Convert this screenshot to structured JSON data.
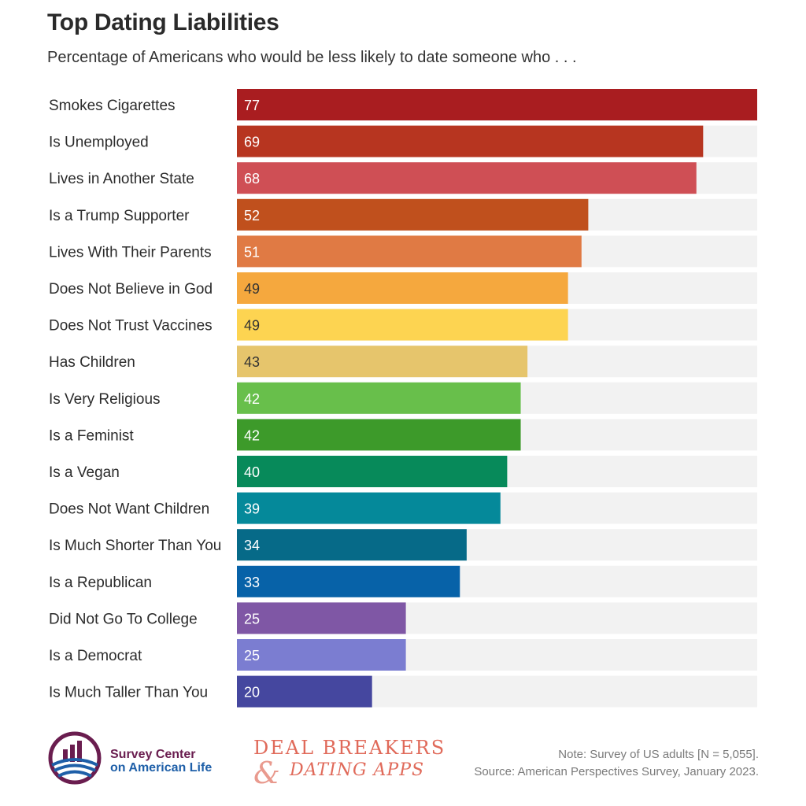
{
  "header": {
    "title": "Top Dating Liabilities",
    "subtitle": "Percentage of Americans who would be less likely to date someone who . . ."
  },
  "chart_data": {
    "type": "bar",
    "orientation": "horizontal",
    "title": "Top Dating Liabilities",
    "subtitle": "Percentage of Americans who would be less likely to date someone who . . .",
    "xlim": [
      0,
      77
    ],
    "grid": false,
    "categories": [
      "Smokes Cigarettes",
      "Is Unemployed",
      "Lives in Another State",
      "Is a Trump Supporter",
      "Lives With Their Parents",
      "Does Not Believe in God",
      "Does Not Trust Vaccines",
      "Has Children",
      "Is Very Religious",
      "Is a Feminist",
      "Is a Vegan",
      "Does Not Want Children",
      "Is Much Shorter Than You",
      "Is a Republican",
      "Did Not Go To College",
      "Is a Democrat",
      "Is Much Taller Than You"
    ],
    "values": [
      77,
      69,
      68,
      52,
      51,
      49,
      49,
      43,
      42,
      42,
      40,
      39,
      34,
      33,
      25,
      25,
      20
    ],
    "bar_colors": [
      "#a91d20",
      "#b73520",
      "#cf4f55",
      "#c0501d",
      "#e07a44",
      "#f5a83e",
      "#fdd451",
      "#e6c56c",
      "#68bf4b",
      "#3d9a2a",
      "#078a5a",
      "#05899a",
      "#066a88",
      "#0762a8",
      "#7f57a5",
      "#7b7dd1",
      "#45479f"
    ],
    "value_label_colors": [
      "#ffffff",
      "#ffffff",
      "#ffffff",
      "#ffffff",
      "#ffffff",
      "#333333",
      "#333333",
      "#333333",
      "#ffffff",
      "#ffffff",
      "#ffffff",
      "#ffffff",
      "#ffffff",
      "#ffffff",
      "#ffffff",
      "#ffffff",
      "#ffffff"
    ],
    "track_color": "#f2f2f2"
  },
  "footer": {
    "org_line1": "Survey Center",
    "org_line2": "on American Life",
    "brand_line1": "DEAL BREAKERS",
    "brand_amp": "&",
    "brand_line2": "DATING APPS",
    "note": "Note: Survey of US adults [N = 5,055].",
    "source": "Source: American Perspectives Survey, January 2023."
  },
  "colors": {
    "logo_ring": "#6a1d4f",
    "logo_bars": "#6a1d4f",
    "logo_waves": "#1e5fa8"
  }
}
